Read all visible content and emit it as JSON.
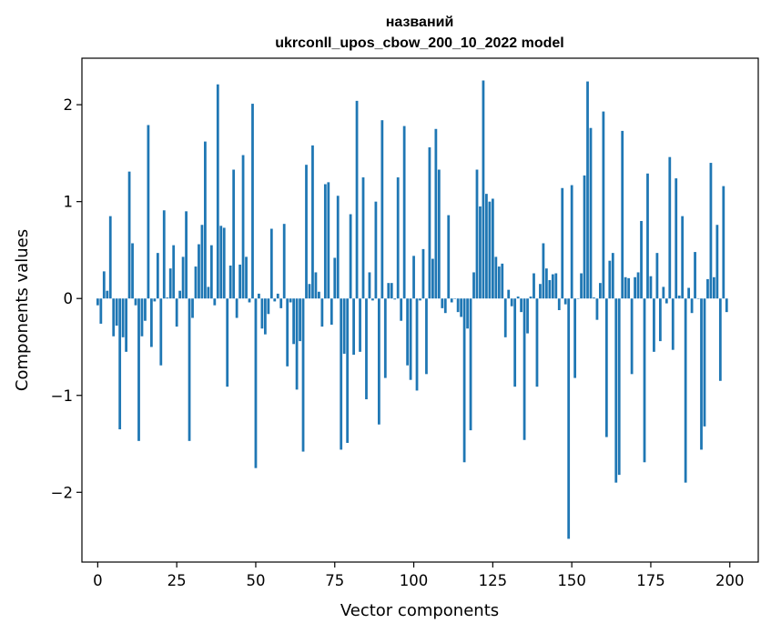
{
  "chart_data": {
    "type": "bar",
    "title": [
      "названий",
      "ukrconll_upos_cbow_200_10_2022 model"
    ],
    "xlabel": "Vector components",
    "ylabel": "Components values",
    "xlim": [
      -5,
      209
    ],
    "ylim": [
      -2.72,
      2.48
    ],
    "xticks": [
      0,
      25,
      50,
      75,
      100,
      125,
      150,
      175,
      200
    ],
    "yticks": [
      -2,
      -1,
      0,
      1,
      2
    ],
    "ytick_labels": [
      "−2",
      "−1",
      "0",
      "1",
      "2"
    ],
    "grid": false,
    "legend": "none",
    "bar_color": "#1f77b4",
    "x": [
      0,
      1,
      2,
      3,
      4,
      5,
      6,
      7,
      8,
      9,
      10,
      11,
      12,
      13,
      14,
      15,
      16,
      17,
      18,
      19,
      20,
      21,
      22,
      23,
      24,
      25,
      26,
      27,
      28,
      29,
      30,
      31,
      32,
      33,
      34,
      35,
      36,
      37,
      38,
      39,
      40,
      41,
      42,
      43,
      44,
      45,
      46,
      47,
      48,
      49,
      50,
      51,
      52,
      53,
      54,
      55,
      56,
      57,
      58,
      59,
      60,
      61,
      62,
      63,
      64,
      65,
      66,
      67,
      68,
      69,
      70,
      71,
      72,
      73,
      74,
      75,
      76,
      77,
      78,
      79,
      80,
      81,
      82,
      83,
      84,
      85,
      86,
      87,
      88,
      89,
      90,
      91,
      92,
      93,
      94,
      95,
      96,
      97,
      98,
      99,
      100,
      101,
      102,
      103,
      104,
      105,
      106,
      107,
      108,
      109,
      110,
      111,
      112,
      113,
      114,
      115,
      116,
      117,
      118,
      119,
      120,
      121,
      122,
      123,
      124,
      125,
      126,
      127,
      128,
      129,
      130,
      131,
      132,
      133,
      134,
      135,
      136,
      137,
      138,
      139,
      140,
      141,
      142,
      143,
      144,
      145,
      146,
      147,
      148,
      149,
      150,
      151,
      152,
      153,
      154,
      155,
      156,
      157,
      158,
      159,
      160,
      161,
      162,
      163,
      164,
      165,
      166,
      167,
      168,
      169,
      170,
      171,
      172,
      173,
      174,
      175,
      176,
      177,
      178,
      179,
      180,
      181,
      182,
      183,
      184,
      185,
      186,
      187,
      188,
      189,
      190,
      191,
      192,
      193,
      194,
      195,
      196,
      197,
      198,
      199
    ],
    "values": [
      -0.07,
      -0.26,
      0.28,
      0.08,
      0.85,
      -0.39,
      -0.28,
      -1.35,
      -0.4,
      -0.55,
      1.31,
      0.57,
      -0.07,
      -1.47,
      -0.39,
      -0.23,
      1.79,
      -0.5,
      -0.03,
      0.47,
      -0.69,
      0.91,
      0.01,
      0.31,
      0.55,
      -0.29,
      0.08,
      0.43,
      0.9,
      -1.47,
      -0.2,
      0.33,
      0.56,
      0.76,
      1.62,
      0.12,
      0.55,
      -0.07,
      2.21,
      0.75,
      0.73,
      -0.91,
      0.34,
      1.33,
      -0.2,
      0.35,
      1.48,
      0.43,
      -0.04,
      2.01,
      -1.75,
      0.05,
      -0.31,
      -0.37,
      -0.16,
      0.72,
      -0.03,
      0.05,
      -0.1,
      0.77,
      -0.7,
      -0.04,
      -0.47,
      -0.94,
      -0.44,
      -1.58,
      1.38,
      0.15,
      1.58,
      0.27,
      0.07,
      -0.29,
      1.18,
      1.2,
      -0.27,
      0.42,
      1.06,
      -1.56,
      -0.57,
      -1.49,
      0.87,
      -0.58,
      2.04,
      -0.55,
      1.25,
      -1.04,
      0.27,
      -0.02,
      1.0,
      -1.3,
      1.84,
      -0.82,
      0.16,
      0.16,
      -0.01,
      1.25,
      -0.23,
      1.78,
      -0.69,
      -0.84,
      0.44,
      -0.95,
      -0.02,
      0.51,
      -0.78,
      1.56,
      0.41,
      1.75,
      1.33,
      -0.1,
      -0.15,
      0.86,
      -0.04,
      0.0,
      -0.14,
      -0.19,
      -1.69,
      -0.31,
      -1.36,
      0.27,
      1.33,
      0.95,
      2.25,
      1.08,
      1.0,
      1.03,
      0.43,
      0.33,
      0.36,
      -0.4,
      0.09,
      -0.08,
      -0.91,
      0.02,
      -0.14,
      -1.46,
      -0.36,
      0.02,
      0.26,
      -0.91,
      0.15,
      0.57,
      0.31,
      0.19,
      0.25,
      0.26,
      -0.12,
      1.14,
      -0.06,
      -2.48,
      1.17,
      -0.82,
      0.0,
      0.26,
      1.27,
      2.24,
      1.76,
      0.01,
      -0.22,
      0.16,
      1.93,
      -1.43,
      0.39,
      0.47,
      -1.9,
      -1.82,
      1.73,
      0.22,
      0.21,
      -0.78,
      0.22,
      0.27,
      0.8,
      -1.69,
      1.29,
      0.23,
      -0.55,
      0.47,
      -0.44,
      0.12,
      -0.05,
      1.46,
      -0.53,
      1.24,
      0.03,
      0.85,
      -1.9,
      0.11,
      -0.15,
      0.48,
      0.0,
      -1.56,
      -1.32,
      0.2,
      1.4,
      0.22,
      0.76,
      -0.85,
      1.16,
      -0.14
    ]
  }
}
